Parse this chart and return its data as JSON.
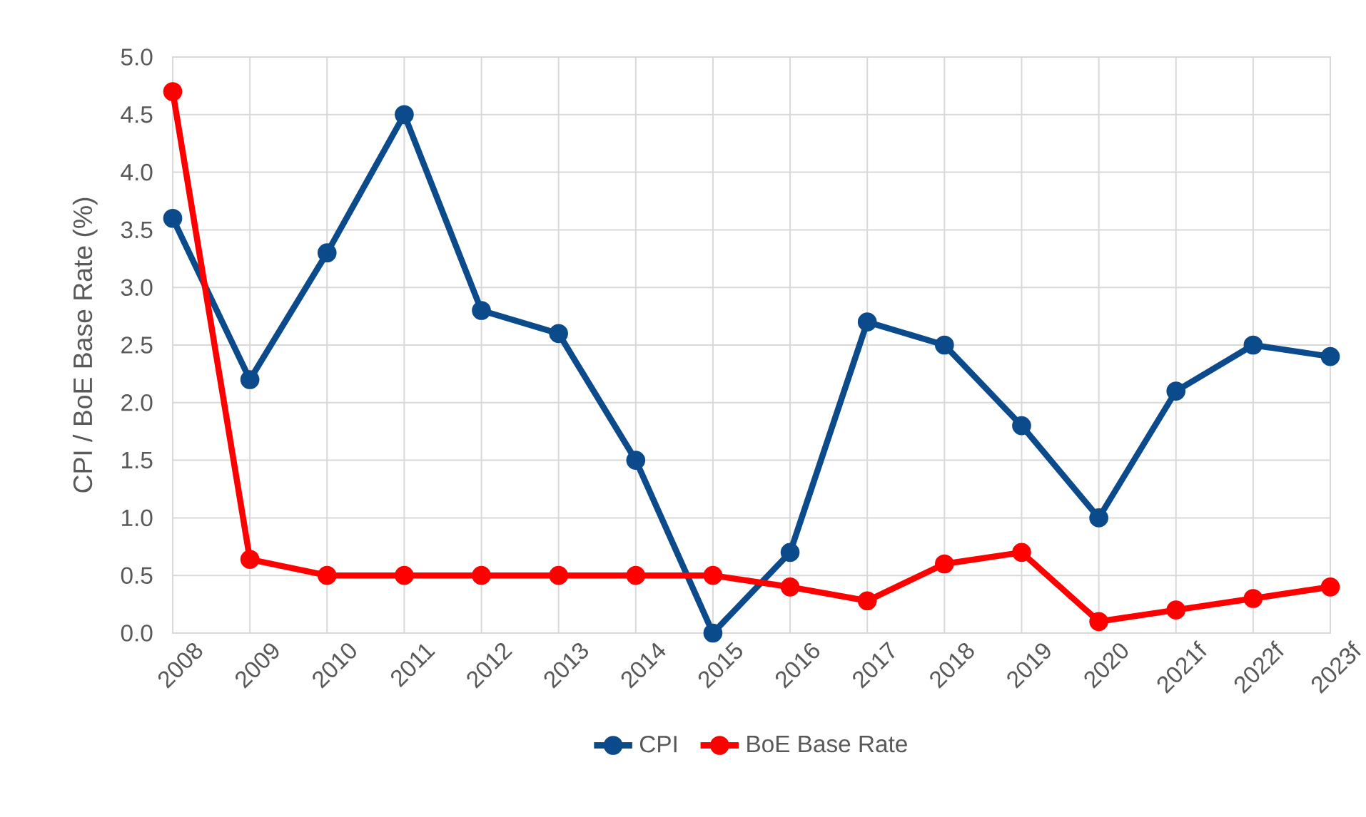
{
  "chart_data": {
    "type": "line",
    "ylabel": "CPI / BoE Base Rate (%)",
    "categories": [
      "2008",
      "2009",
      "2010",
      "2011",
      "2012",
      "2013",
      "2014",
      "2015",
      "2016",
      "2017",
      "2018",
      "2019",
      "2020",
      "2021f",
      "2022f",
      "2023f"
    ],
    "series": [
      {
        "name": "CPI",
        "color": "#0b4a8b",
        "values": [
          3.6,
          2.2,
          3.3,
          4.5,
          2.8,
          2.6,
          1.5,
          0.0,
          0.7,
          2.7,
          2.5,
          1.8,
          1.0,
          2.1,
          2.5,
          2.4
        ]
      },
      {
        "name": "BoE Base Rate",
        "color": "#ff0000",
        "values": [
          4.7,
          0.64,
          0.5,
          0.5,
          0.5,
          0.5,
          0.5,
          0.5,
          0.4,
          0.28,
          0.6,
          0.7,
          0.1,
          0.2,
          0.3,
          0.4
        ]
      }
    ],
    "ylim": [
      0,
      5
    ],
    "yticks": [
      {
        "value": 0,
        "label": "0.0"
      },
      {
        "value": 0.5,
        "label": "0.5"
      },
      {
        "value": 1,
        "label": "1.0"
      },
      {
        "value": 1.5,
        "label": "1.5"
      },
      {
        "value": 2,
        "label": "2.0"
      },
      {
        "value": 2.5,
        "label": "2.5"
      },
      {
        "value": 3,
        "label": "3.0"
      },
      {
        "value": 3.5,
        "label": "3.5"
      },
      {
        "value": 4,
        "label": "4.0"
      },
      {
        "value": 4.5,
        "label": "4.5"
      },
      {
        "value": 5,
        "label": "5.0"
      }
    ],
    "grid": true,
    "legend": "bottom",
    "marker": "circle"
  }
}
